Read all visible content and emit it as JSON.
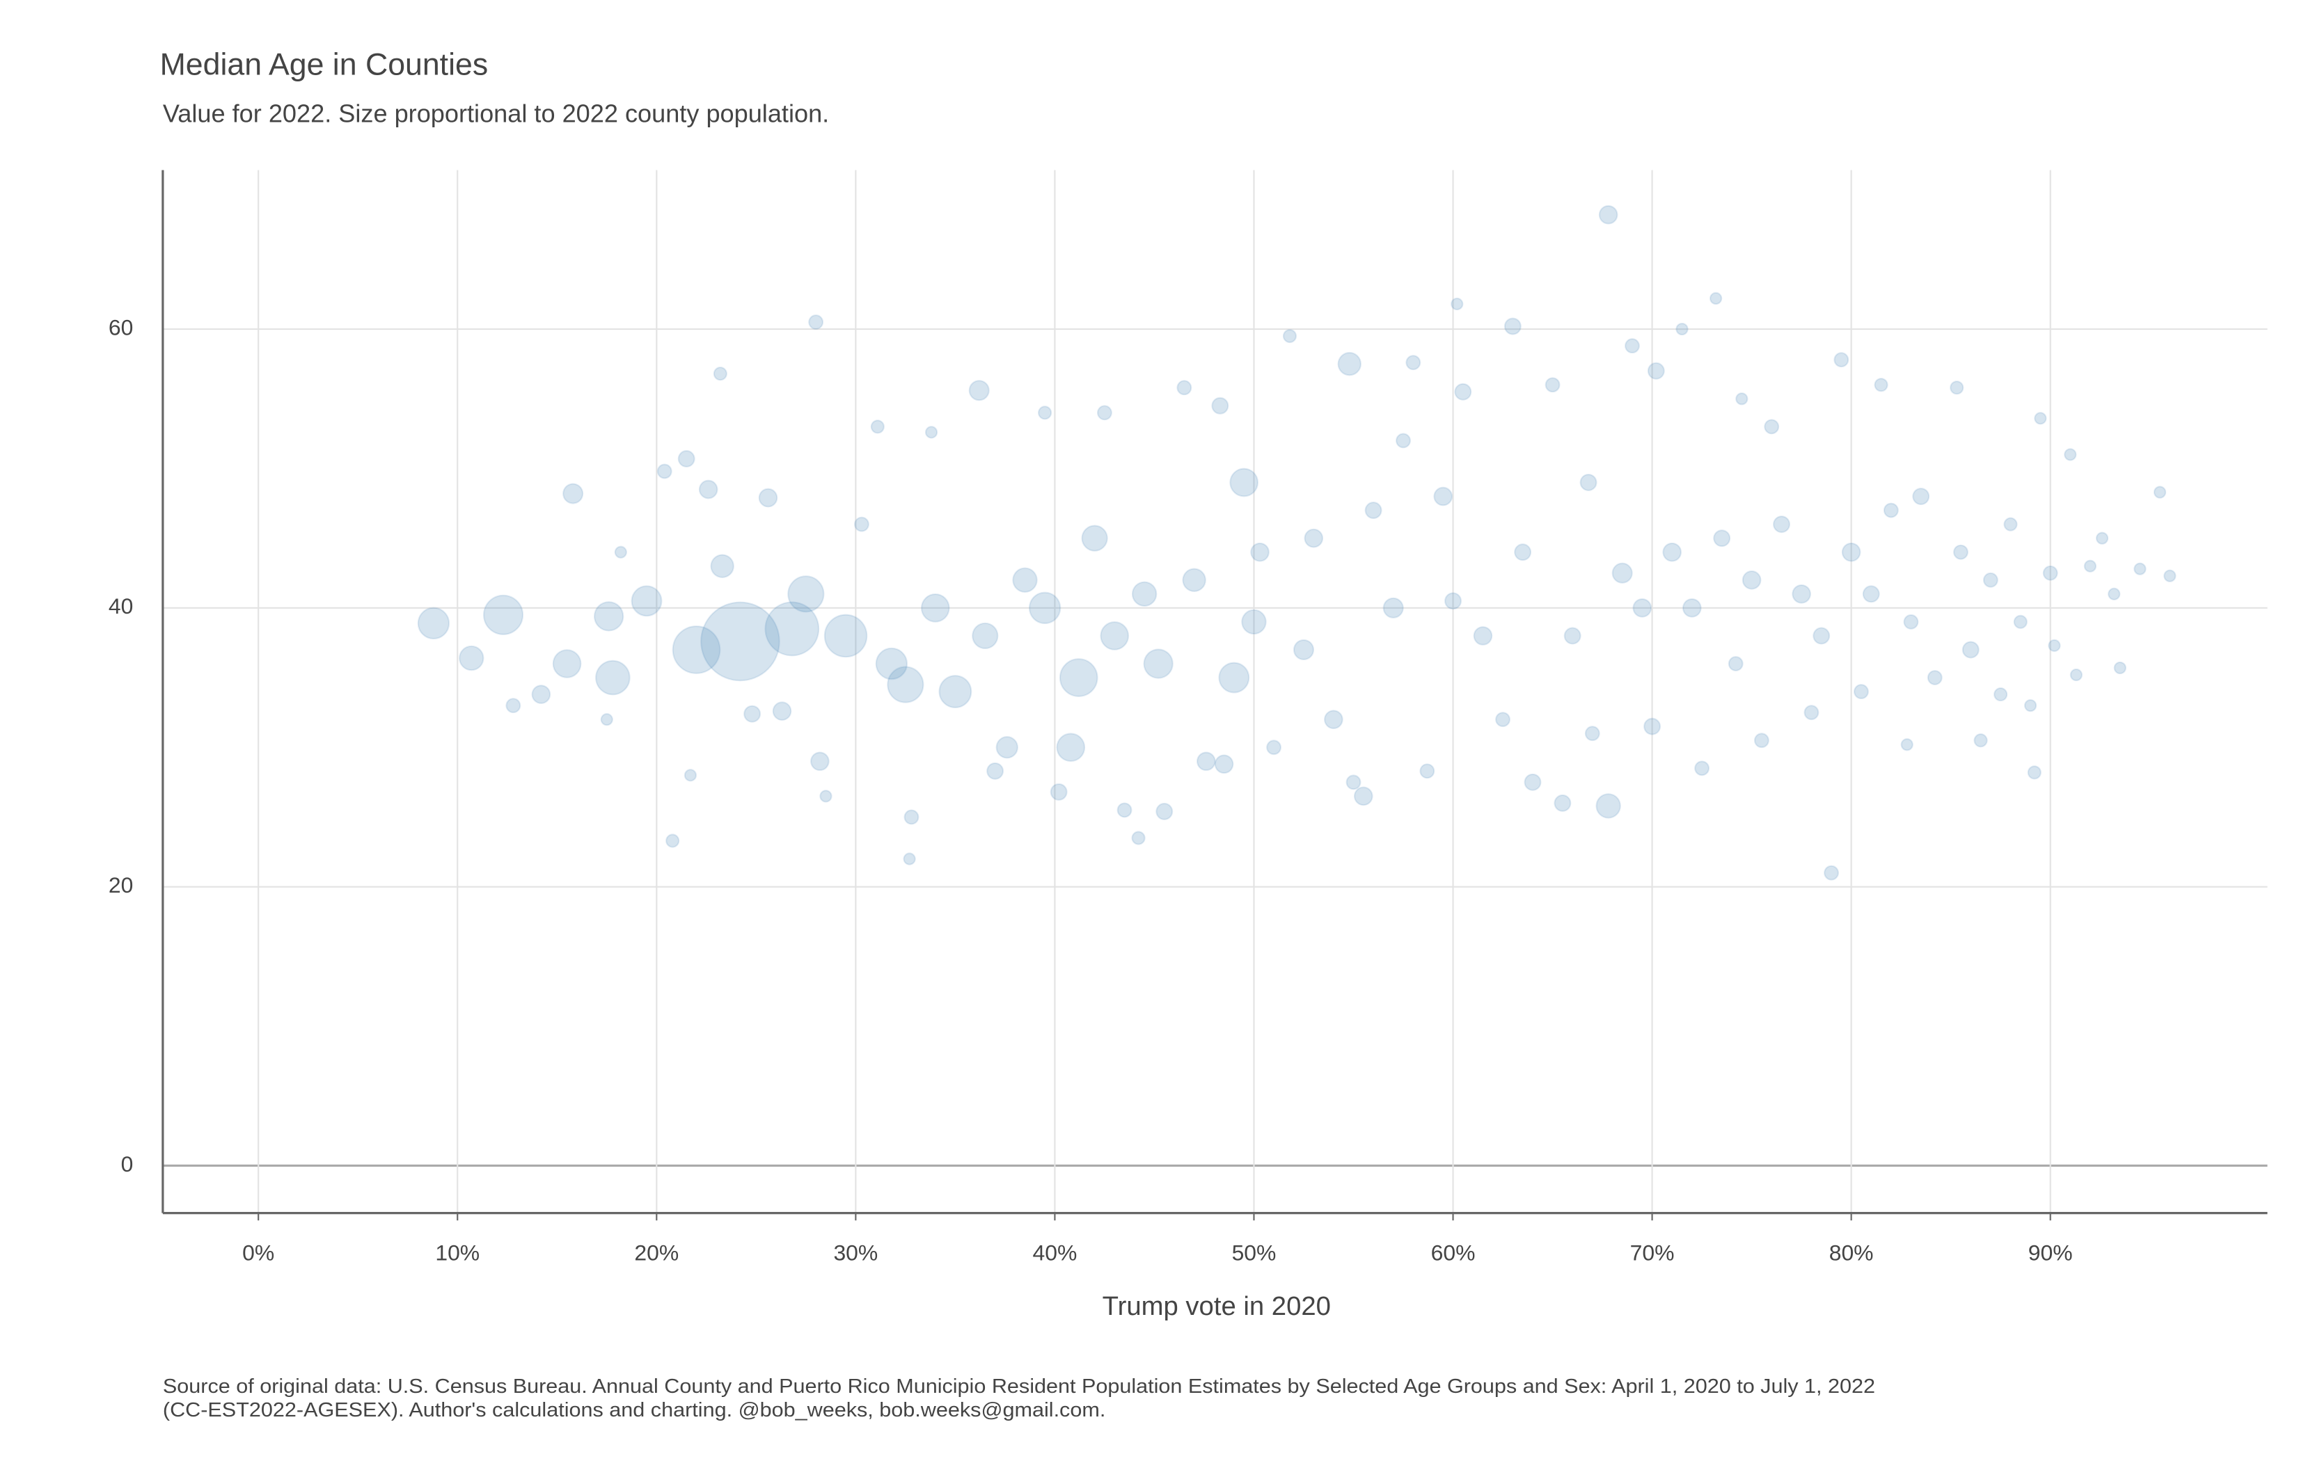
{
  "chart_data": {
    "type": "scatter",
    "title": "Median Age in Counties",
    "subtitle": "Value for 2022. Size proportional to 2022 county population.",
    "x_label": "Trump vote in 2020",
    "source": [
      "Source of original data: U.S. Census Bureau. Annual County and Puerto Rico Municipio Resident Population Estimates by Selected Age Groups and Sex: April 1, 2020 to July 1, 2022",
      "(CC-EST2022-AGESEX). Author's calculations and charting. @bob_weeks, bob.weeks@gmail.com."
    ],
    "xlim": [
      -4.8,
      100.9
    ],
    "ylim": [
      -3.4,
      71.4
    ],
    "xticks": [
      {
        "value": 0,
        "label": "0%"
      },
      {
        "value": 10,
        "label": "10%"
      },
      {
        "value": 20,
        "label": "20%"
      },
      {
        "value": 30,
        "label": "30%"
      },
      {
        "value": 40,
        "label": "40%"
      },
      {
        "value": 50,
        "label": "50%"
      },
      {
        "value": 60,
        "label": "60%"
      },
      {
        "value": 70,
        "label": "70%"
      },
      {
        "value": 80,
        "label": "80%"
      },
      {
        "value": 90,
        "label": "90%"
      }
    ],
    "yticks": [
      0,
      20,
      40,
      60
    ],
    "grid": true,
    "color": "#4682b4",
    "x": [
      8.8,
      10.7,
      12.3,
      12.8,
      14.2,
      15.8,
      15.5,
      17.6,
      17.8,
      17.5,
      18.2,
      19.5,
      20.4,
      21.5,
      20.8,
      21.7,
      22,
      22.6,
      23.2,
      23.3,
      24.2,
      24.8,
      25.6,
      26.8,
      26.3,
      27.5,
      28,
      28.2,
      28.5,
      29.5,
      30.3,
      31.1,
      31.8,
      32.5,
      32.7,
      32.8,
      33.8,
      34,
      35,
      36.2,
      36.5,
      37,
      37.6,
      38.5,
      39.5,
      39.5,
      40.2,
      40.8,
      41.2,
      42,
      42.5,
      43,
      43.5,
      44.2,
      44.5,
      45.2,
      45.5,
      46.5,
      47,
      47.6,
      48.3,
      48.5,
      49,
      49.5,
      50,
      50.3,
      51,
      51.8,
      52.5,
      53,
      54,
      54.8,
      55,
      55.5,
      56,
      57,
      57.5,
      58,
      58.7,
      59.5,
      60,
      60.2,
      60.5,
      61.5,
      62.5,
      63,
      63.5,
      64,
      65,
      65.5,
      66,
      66.8,
      67,
      67.8,
      67.8,
      68.5,
      69,
      69.5,
      70,
      70.2,
      71,
      71.5,
      72,
      72.5,
      73.2,
      73.5,
      74.2,
      74.5,
      75,
      75.5,
      76,
      76.5,
      77.5,
      78,
      78.5,
      79,
      79.5,
      80,
      80.5,
      81,
      81.5,
      82,
      82.8,
      83,
      83.5,
      84.2,
      85.3,
      85.5,
      86,
      86.5,
      87,
      87.5,
      88,
      88.5,
      89,
      89.2,
      89.5,
      90,
      90.2,
      91,
      91.3,
      92,
      92.6,
      93.2,
      93.5,
      94.5,
      95.5,
      96
    ],
    "values": [
      38.9,
      36.4,
      39.5,
      33,
      33.8,
      48.2,
      36,
      39.4,
      35,
      32,
      44,
      40.5,
      49.8,
      50.7,
      23.3,
      28,
      37,
      48.5,
      56.8,
      43,
      37.6,
      32.4,
      47.9,
      38.5,
      32.6,
      41,
      60.5,
      29,
      26.5,
      38,
      46,
      53,
      36,
      34.5,
      22,
      25,
      52.6,
      40,
      34,
      55.6,
      38,
      28.3,
      30,
      42,
      40,
      54,
      26.8,
      30,
      35,
      45,
      54,
      38,
      25.5,
      23.5,
      41,
      36,
      25.4,
      55.8,
      42,
      29,
      54.5,
      28.8,
      35,
      49,
      39,
      44,
      30,
      59.5,
      37,
      45,
      32,
      57.5,
      27.5,
      26.5,
      47,
      40,
      52,
      57.6,
      28.3,
      48,
      40.5,
      61.8,
      55.5,
      38,
      32,
      60.2,
      44,
      27.5,
      56,
      26,
      38,
      49,
      31,
      25.8,
      68.2,
      42.5,
      58.8,
      40,
      31.5,
      57,
      44,
      60,
      40,
      28.5,
      62.2,
      45,
      36,
      55,
      42,
      30.5,
      53,
      46,
      41,
      32.5,
      38,
      21,
      57.8,
      44,
      34,
      41,
      56,
      47,
      30.2,
      39,
      48,
      35,
      55.8,
      44,
      37,
      30.5,
      42,
      33.8,
      46,
      39,
      33,
      28.2,
      53.6,
      42.5,
      37.3,
      51,
      35.2,
      43,
      45,
      41,
      35.7,
      42.8,
      48.3,
      42.3
    ],
    "sizes": [
      1500000,
      900000,
      2400000,
      300000,
      500000,
      600000,
      1200000,
      1300000,
      1800000,
      200000,
      200000,
      1400000,
      300000,
      400000,
      250000,
      200000,
      3500000,
      500000,
      250000,
      800000,
      9700000,
      400000,
      500000,
      4500000,
      500000,
      2000000,
      300000,
      500000,
      200000,
      2800000,
      300000,
      250000,
      1500000,
      2000000,
      200000,
      300000,
      200000,
      1200000,
      1600000,
      600000,
      1000000,
      400000,
      700000,
      900000,
      1500000,
      250000,
      400000,
      1200000,
      2200000,
      1000000,
      300000,
      1200000,
      300000,
      250000,
      900000,
      1300000,
      400000,
      300000,
      800000,
      500000,
      400000,
      500000,
      1400000,
      1200000,
      900000,
      500000,
      300000,
      250000,
      600000,
      500000,
      500000,
      800000,
      300000,
      500000,
      400000,
      600000,
      300000,
      300000,
      300000,
      500000,
      400000,
      200000,
      400000,
      500000,
      300000,
      400000,
      400000,
      400000,
      300000,
      400000,
      400000,
      400000,
      300000,
      900000,
      500000,
      600000,
      300000,
      500000,
      400000,
      400000,
      500000,
      200000,
      500000,
      300000,
      200000,
      400000,
      300000,
      200000,
      500000,
      300000,
      300000,
      400000,
      500000,
      300000,
      400000,
      300000,
      300000,
      500000,
      300000,
      400000,
      250000,
      300000,
      200000,
      300000,
      400000,
      300000,
      250000,
      300000,
      400000,
      250000,
      300000,
      250000,
      250000,
      250000,
      200000,
      250000,
      200000,
      300000,
      200000,
      200000,
      200000,
      200000,
      200000,
      200000,
      200000,
      200000,
      200000,
      200000
    ]
  }
}
